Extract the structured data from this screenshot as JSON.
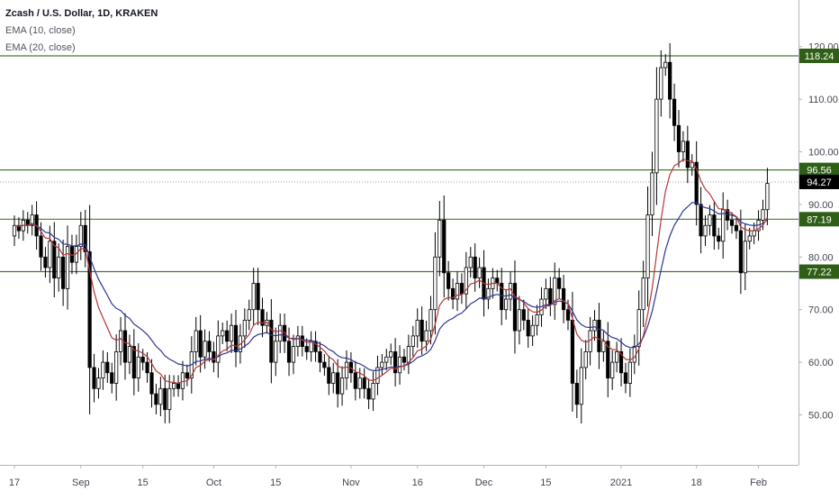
{
  "legend": {
    "symbol": "Zcash / U.S. Dollar, 1D, KRAKEN",
    "ema1": "EMA (10, close)",
    "ema2": "EMA (20, close)"
  },
  "chart_data": {
    "type": "candlestick",
    "y_axis": {
      "range": [
        45,
        124
      ],
      "ticks": [
        50,
        60,
        70,
        80,
        90,
        100,
        110,
        120
      ],
      "tick_labels": [
        "50.00",
        "60.00",
        "70.00",
        "80.00",
        "90.00",
        "100.00",
        "110.00",
        "120.00"
      ],
      "position": "right"
    },
    "x_axis": {
      "labels": [
        {
          "text": "17",
          "day": 0
        },
        {
          "text": "Sep",
          "day": 15
        },
        {
          "text": "15",
          "day": 29
        },
        {
          "text": "Oct",
          "day": 45
        },
        {
          "text": "15",
          "day": 59
        },
        {
          "text": "Nov",
          "day": 76
        },
        {
          "text": "16",
          "day": 91
        },
        {
          "text": "Dec",
          "day": 106
        },
        {
          "text": "15",
          "day": 120
        },
        {
          "text": "2021",
          "day": 137
        },
        {
          "text": "18",
          "day": 154
        },
        {
          "text": "Feb",
          "day": 168
        }
      ]
    },
    "horizontal_levels": [
      {
        "value": 118.24,
        "label": "118.24",
        "color": "#4a7a32"
      },
      {
        "value": 96.56,
        "label": "96.56",
        "color": "#4a7a32"
      },
      {
        "value": 87.19,
        "label": "87.19",
        "color": "#4a7a32"
      },
      {
        "value": 77.22,
        "label": "77.22",
        "color": "#4a7a32"
      }
    ],
    "last_price": {
      "value": 94.27,
      "label": "94.27"
    },
    "ema_colors": {
      "ema10": "#b2383a",
      "ema20": "#2b3592"
    },
    "candle_colors": {
      "up": "#ffffff",
      "down": "#000000",
      "wick": "#000000"
    },
    "closes": [
      86,
      85,
      87,
      86,
      88,
      84,
      80,
      78,
      83,
      76,
      80,
      74,
      82,
      79,
      82,
      86,
      81,
      59,
      55,
      57,
      60,
      58,
      56,
      62,
      66,
      60,
      63,
      57,
      61,
      60,
      58,
      54,
      52,
      55,
      51,
      55,
      56,
      55,
      58,
      57,
      62,
      66,
      61,
      64,
      62,
      60,
      65,
      66,
      64,
      67,
      62,
      65,
      68,
      70,
      75,
      70,
      67,
      68,
      60,
      64,
      67,
      64,
      60,
      63,
      65,
      63,
      62,
      64,
      62,
      60,
      59,
      56,
      58,
      54,
      57,
      60,
      58,
      55,
      57,
      55,
      53,
      56,
      59,
      60,
      61,
      62,
      58,
      61,
      60,
      63,
      65,
      68,
      64,
      66,
      70,
      80,
      87,
      77,
      74,
      72,
      75,
      73,
      78,
      80,
      76,
      78,
      72,
      74,
      76,
      75,
      70,
      72,
      75,
      66,
      70,
      68,
      65,
      67,
      69,
      72,
      74,
      71,
      76,
      74,
      70,
      68,
      56,
      52,
      59,
      62,
      66,
      68,
      62,
      64,
      57,
      60,
      62,
      58,
      56,
      60,
      63,
      70,
      76,
      88,
      96,
      110,
      116,
      117,
      110,
      105,
      100,
      102,
      97,
      98,
      90,
      84,
      86,
      88,
      84,
      83,
      89,
      87,
      86,
      85,
      77,
      83,
      84,
      85,
      87,
      89,
      94
    ]
  }
}
